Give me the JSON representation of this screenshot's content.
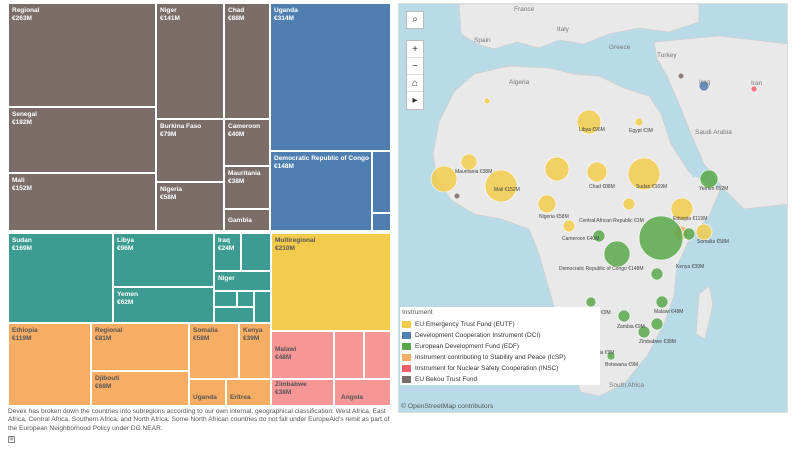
{
  "treemap": {
    "cells": {
      "regional1": {
        "name": "Regional",
        "value": "€263M"
      },
      "niger1": {
        "name": "Niger",
        "value": "€141M"
      },
      "chad": {
        "name": "Chad",
        "value": "€88M"
      },
      "uganda": {
        "name": "Uganda",
        "value": "€314M"
      },
      "senegal": {
        "name": "Senegal",
        "value": "€182M"
      },
      "burkina": {
        "name": "Burkina Faso",
        "value": "€79M"
      },
      "cameroon": {
        "name": "Cameroon",
        "value": "€40M"
      },
      "drc": {
        "name": "Democratic Republic of Congo",
        "value": "€148M"
      },
      "mali": {
        "name": "Mali",
        "value": "€152M"
      },
      "nigeria": {
        "name": "Nigeria",
        "value": "€58M"
      },
      "mauritania": {
        "name": "Mauritania",
        "value": "€38M"
      },
      "gambia": {
        "name": "Gambia",
        "value": ""
      },
      "sudan": {
        "name": "Sudan",
        "value": "€169M"
      },
      "libya": {
        "name": "Libya",
        "value": "€96M"
      },
      "iraq": {
        "name": "Iraq",
        "value": "€24M"
      },
      "niger2": {
        "name": "Niger",
        "value": ""
      },
      "yemen": {
        "name": "Yemen",
        "value": "€62M"
      },
      "multiregional": {
        "name": "Multiregional",
        "value": "€210M"
      },
      "ethiopia": {
        "name": "Ethiopia",
        "value": "€119M"
      },
      "regional2": {
        "name": "Regional",
        "value": "€81M"
      },
      "somalia": {
        "name": "Somalia",
        "value": "€58M"
      },
      "kenya": {
        "name": "Kenya",
        "value": "€39M"
      },
      "malawi": {
        "name": "Malawi",
        "value": "€48M"
      },
      "djibouti": {
        "name": "Djibouti",
        "value": "€68M"
      },
      "zimbabwe": {
        "name": "Zimbabwe",
        "value": "€38M"
      },
      "uganda2": {
        "name": "Uganda",
        "value": ""
      },
      "eritrea": {
        "name": "Eritrea",
        "value": ""
      },
      "angola": {
        "name": "Angola",
        "value": ""
      }
    }
  },
  "footnote": "Devex has broken down the countries into subregions according to our own internal, geographical classification: West Africa, East Africa, Central Africa, Southern Africa, and North Africa. Some North African countries do not fall under EuropeAid's remit as part of the European Neighborhood Policy under DG NEAR.",
  "map": {
    "controls": {
      "search": "⌕",
      "zoom_in": "+",
      "zoom_out": "−",
      "home": "⌂",
      "play": "▸"
    },
    "countries": {
      "france": "France",
      "spain": "Spain",
      "italy": "Italy",
      "greece": "Greece",
      "turkey": "Turkey",
      "iraq": "Iraq",
      "iran": "Iran",
      "algeria": "Algeria",
      "saudi": "Saudi Arabia",
      "south_africa": "South Africa"
    },
    "places": {
      "libya": "Libya €96M",
      "egypt": "Egypt €3M",
      "mauritania": "Mauritania €38M",
      "mali": "Mali €152M",
      "chad": "Chad €88M",
      "sudan": "Sudan €169M",
      "nigeria": "Nigeria €58M",
      "yemen": "Yemen €62M",
      "ethiopia": "Ethiopia €119M",
      "car": "Central African Republic €3M",
      "drc": "Democratic Republic of Congo €148M",
      "cameroon": "Cameroon €40M",
      "somalia": "Somalia €58M",
      "angola": "Angola €9M",
      "zambia": "Zambia €9M",
      "malawi": "Malawi €48M",
      "zimbabwe": "Zimbabwe €38M",
      "namibia": "Namibia €9M",
      "botswana": "Botswana €9M",
      "kenya": "Kenya €39M"
    }
  },
  "legend": {
    "title": "Instrument",
    "items": [
      {
        "label": "EU Emergency Trust Fund (EUTF)",
        "color": "#f2cb4c"
      },
      {
        "label": "Development Cooperation Instrument (DCI)",
        "color": "#4f7fb0"
      },
      {
        "label": "European Development Fund (EDF)",
        "color": "#58a84a"
      },
      {
        "label": "Instrument contributing to Stability and Peace (IcSP)",
        "color": "#f6ad64"
      },
      {
        "label": "Instrument for Nuclear Safety Cooperation (INSC)",
        "color": "#f25f6a"
      },
      {
        "label": "EU Bekou Trust Fund",
        "color": "#7b6e69"
      }
    ]
  },
  "attribution": "© OpenStreetMap contributors"
}
